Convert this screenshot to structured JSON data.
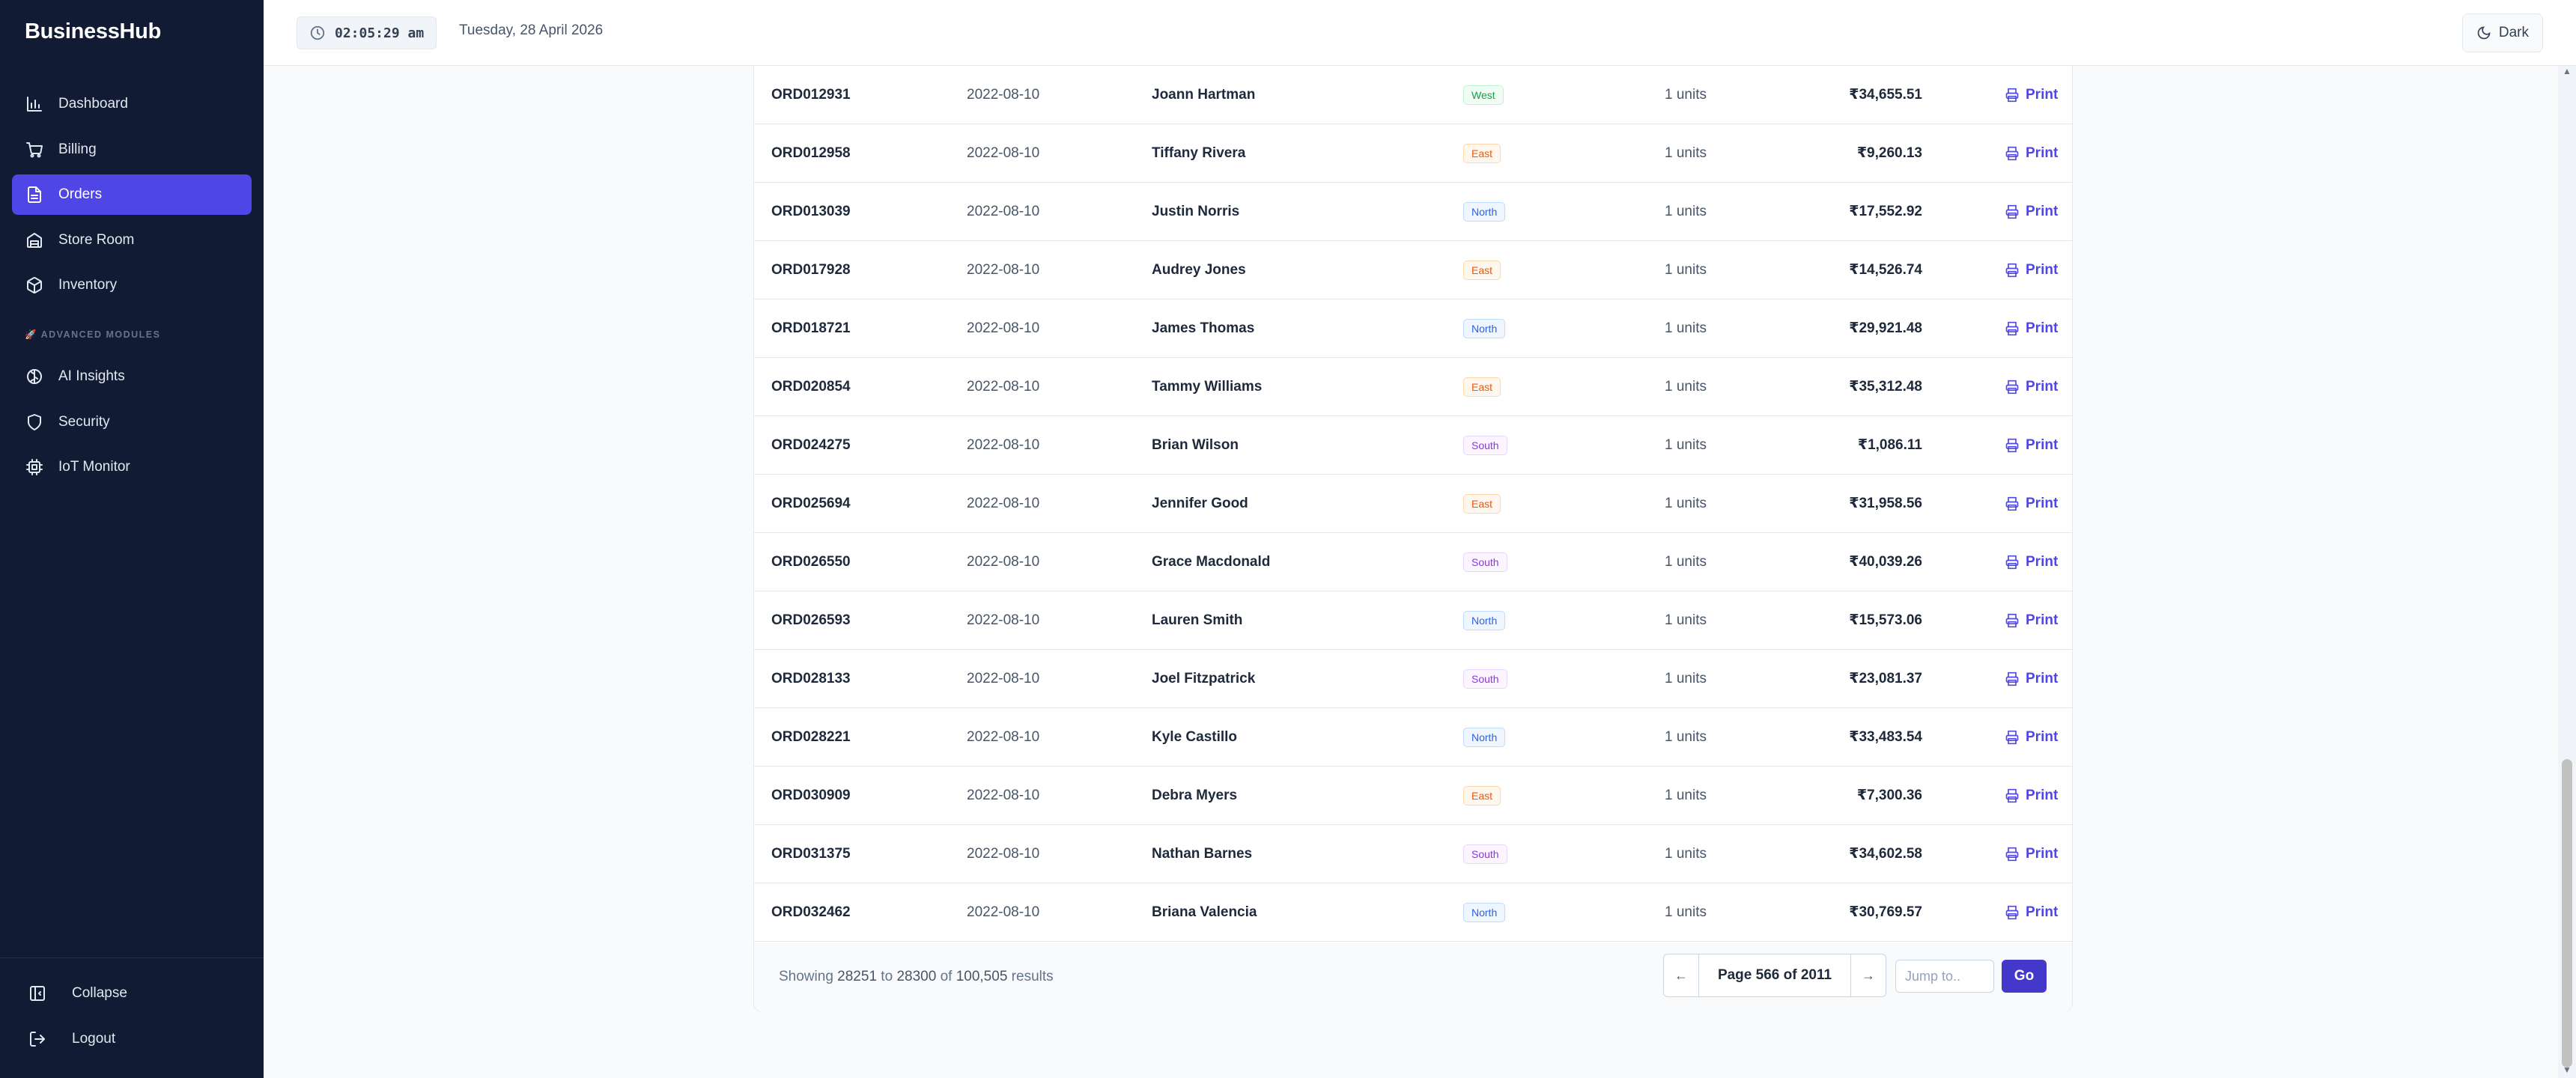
{
  "app": {
    "brand": "BusinessHub"
  },
  "sidebar": {
    "items": [
      {
        "label": "Dashboard",
        "icon": "bar-chart-icon"
      },
      {
        "label": "Billing",
        "icon": "cart-icon"
      },
      {
        "label": "Orders",
        "icon": "document-icon",
        "active": true
      },
      {
        "label": "Store Room",
        "icon": "warehouse-icon"
      },
      {
        "label": "Inventory",
        "icon": "box-icon"
      }
    ],
    "section_label": "🚀 ADVANCED MODULES",
    "advanced": [
      {
        "label": "AI Insights",
        "icon": "brain-icon"
      },
      {
        "label": "Security",
        "icon": "shield-icon"
      },
      {
        "label": "IoT Monitor",
        "icon": "chip-icon"
      }
    ],
    "bottom": [
      {
        "label": "Collapse",
        "icon": "collapse-icon"
      },
      {
        "label": "Logout",
        "icon": "logout-icon"
      }
    ]
  },
  "topbar": {
    "time": "02:05:29 am",
    "date": "Tuesday, 28 April 2026",
    "theme_label": "Dark"
  },
  "orders": {
    "print_label": "Print",
    "rows": [
      {
        "id": "ORD012931",
        "date": "2022-08-10",
        "customer": "Joann Hartman",
        "region": "West",
        "units": "1 units",
        "amount": "₹34,655.51"
      },
      {
        "id": "ORD012958",
        "date": "2022-08-10",
        "customer": "Tiffany Rivera",
        "region": "East",
        "units": "1 units",
        "amount": "₹9,260.13"
      },
      {
        "id": "ORD013039",
        "date": "2022-08-10",
        "customer": "Justin Norris",
        "region": "North",
        "units": "1 units",
        "amount": "₹17,552.92"
      },
      {
        "id": "ORD017928",
        "date": "2022-08-10",
        "customer": "Audrey Jones",
        "region": "East",
        "units": "1 units",
        "amount": "₹14,526.74"
      },
      {
        "id": "ORD018721",
        "date": "2022-08-10",
        "customer": "James Thomas",
        "region": "North",
        "units": "1 units",
        "amount": "₹29,921.48"
      },
      {
        "id": "ORD020854",
        "date": "2022-08-10",
        "customer": "Tammy Williams",
        "region": "East",
        "units": "1 units",
        "amount": "₹35,312.48"
      },
      {
        "id": "ORD024275",
        "date": "2022-08-10",
        "customer": "Brian Wilson",
        "region": "South",
        "units": "1 units",
        "amount": "₹1,086.11"
      },
      {
        "id": "ORD025694",
        "date": "2022-08-10",
        "customer": "Jennifer Good",
        "region": "East",
        "units": "1 units",
        "amount": "₹31,958.56"
      },
      {
        "id": "ORD026550",
        "date": "2022-08-10",
        "customer": "Grace Macdonald",
        "region": "South",
        "units": "1 units",
        "amount": "₹40,039.26"
      },
      {
        "id": "ORD026593",
        "date": "2022-08-10",
        "customer": "Lauren Smith",
        "region": "North",
        "units": "1 units",
        "amount": "₹15,573.06"
      },
      {
        "id": "ORD028133",
        "date": "2022-08-10",
        "customer": "Joel Fitzpatrick",
        "region": "South",
        "units": "1 units",
        "amount": "₹23,081.37"
      },
      {
        "id": "ORD028221",
        "date": "2022-08-10",
        "customer": "Kyle Castillo",
        "region": "North",
        "units": "1 units",
        "amount": "₹33,483.54"
      },
      {
        "id": "ORD030909",
        "date": "2022-08-10",
        "customer": "Debra Myers",
        "region": "East",
        "units": "1 units",
        "amount": "₹7,300.36"
      },
      {
        "id": "ORD031375",
        "date": "2022-08-10",
        "customer": "Nathan Barnes",
        "region": "South",
        "units": "1 units",
        "amount": "₹34,602.58"
      },
      {
        "id": "ORD032462",
        "date": "2022-08-10",
        "customer": "Briana Valencia",
        "region": "North",
        "units": "1 units",
        "amount": "₹30,769.57"
      }
    ]
  },
  "pagination": {
    "showing_prefix": "Showing",
    "from": "28251",
    "to_word": "to",
    "to": "28300",
    "of_word": "of",
    "total": "100,505",
    "results_word": "results",
    "prev": "←",
    "page_label": "Page 566 of 2011",
    "next": "→",
    "jump_placeholder": "Jump to..",
    "go_label": "Go"
  },
  "colors": {
    "sidebar_bg": "#111b33",
    "accent": "#4f46e5",
    "go_button": "#4338ca"
  }
}
